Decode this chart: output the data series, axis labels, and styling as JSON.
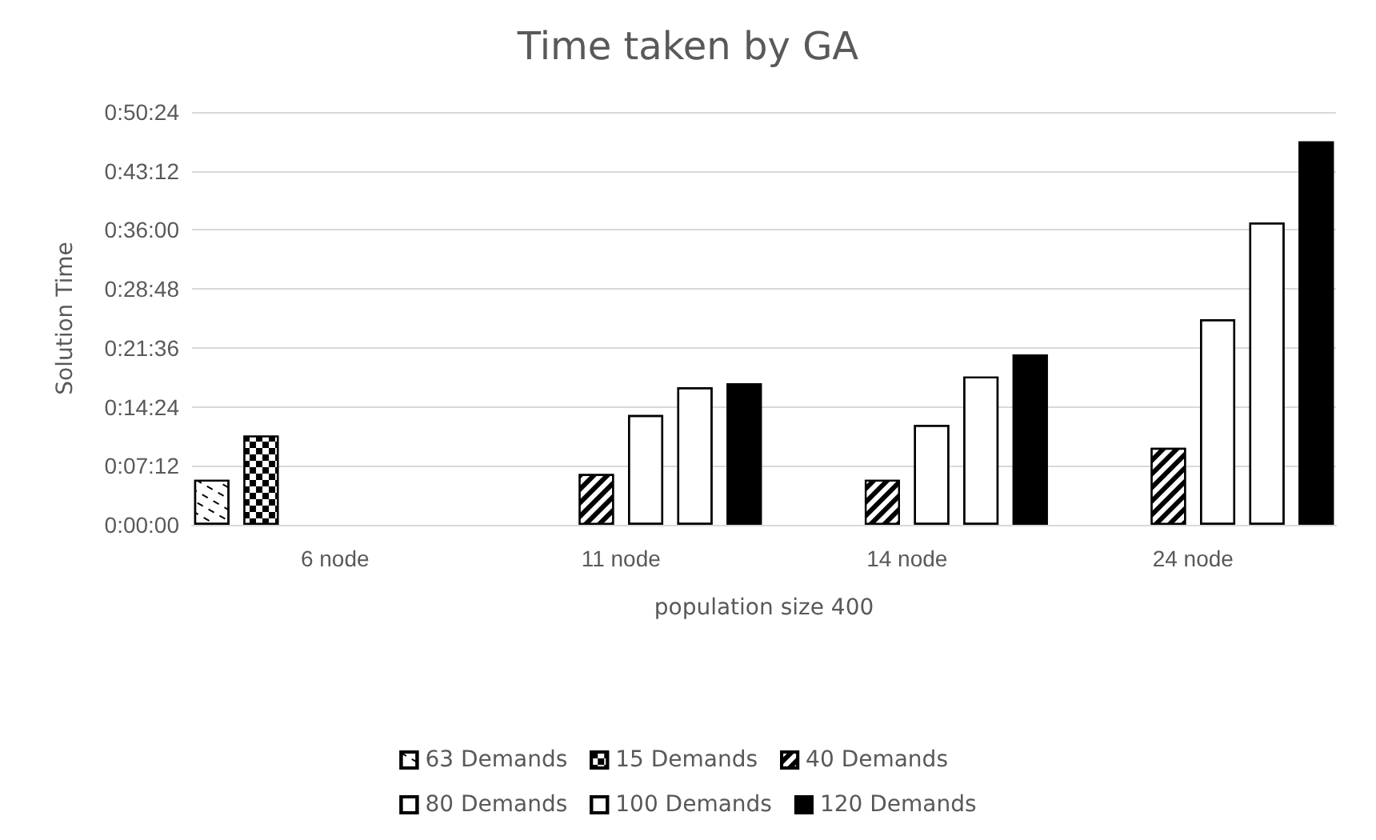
{
  "chart_data": {
    "type": "bar",
    "title": "Time taken by GA",
    "xlabel": "population size 400",
    "ylabel": "Solution Time",
    "categories": [
      "6 node",
      "11 node",
      "14 node",
      "24 node"
    ],
    "series": [
      {
        "name": "63 Demands",
        "color": "#ffffff",
        "values": [
          5.5,
          null,
          null,
          null
        ]
      },
      {
        "name": "15 Demands",
        "color": "#000000",
        "values": [
          10.9,
          null,
          null,
          null
        ]
      },
      {
        "name": "40 Demands",
        "color": "#000000",
        "values": [
          null,
          6.2,
          5.5,
          9.4
        ]
      },
      {
        "name": "80 Demands",
        "color": "#ffffff",
        "values": [
          null,
          13.4,
          12.2,
          25.1
        ]
      },
      {
        "name": "100 Demands",
        "color": "#ffffff",
        "values": [
          null,
          16.8,
          18.1,
          36.9
        ]
      },
      {
        "name": "120 Demands",
        "color": "#000000",
        "values": [
          null,
          17.3,
          20.8,
          46.8
        ]
      }
    ],
    "ylim": [
      0,
      50.4
    ],
    "yticks": [
      {
        "value": 0,
        "label": "0:00:00"
      },
      {
        "value": 7.2,
        "label": "0:07:12"
      },
      {
        "value": 14.4,
        "label": "0:14:24"
      },
      {
        "value": 21.6,
        "label": "0:21:36"
      },
      {
        "value": 28.8,
        "label": "0:28:48"
      },
      {
        "value": 36,
        "label": "0:36:00"
      },
      {
        "value": 43.2,
        "label": "0:43:12"
      },
      {
        "value": 50.4,
        "label": "0:50:24"
      }
    ],
    "grid": "y",
    "legend": "bottom"
  }
}
